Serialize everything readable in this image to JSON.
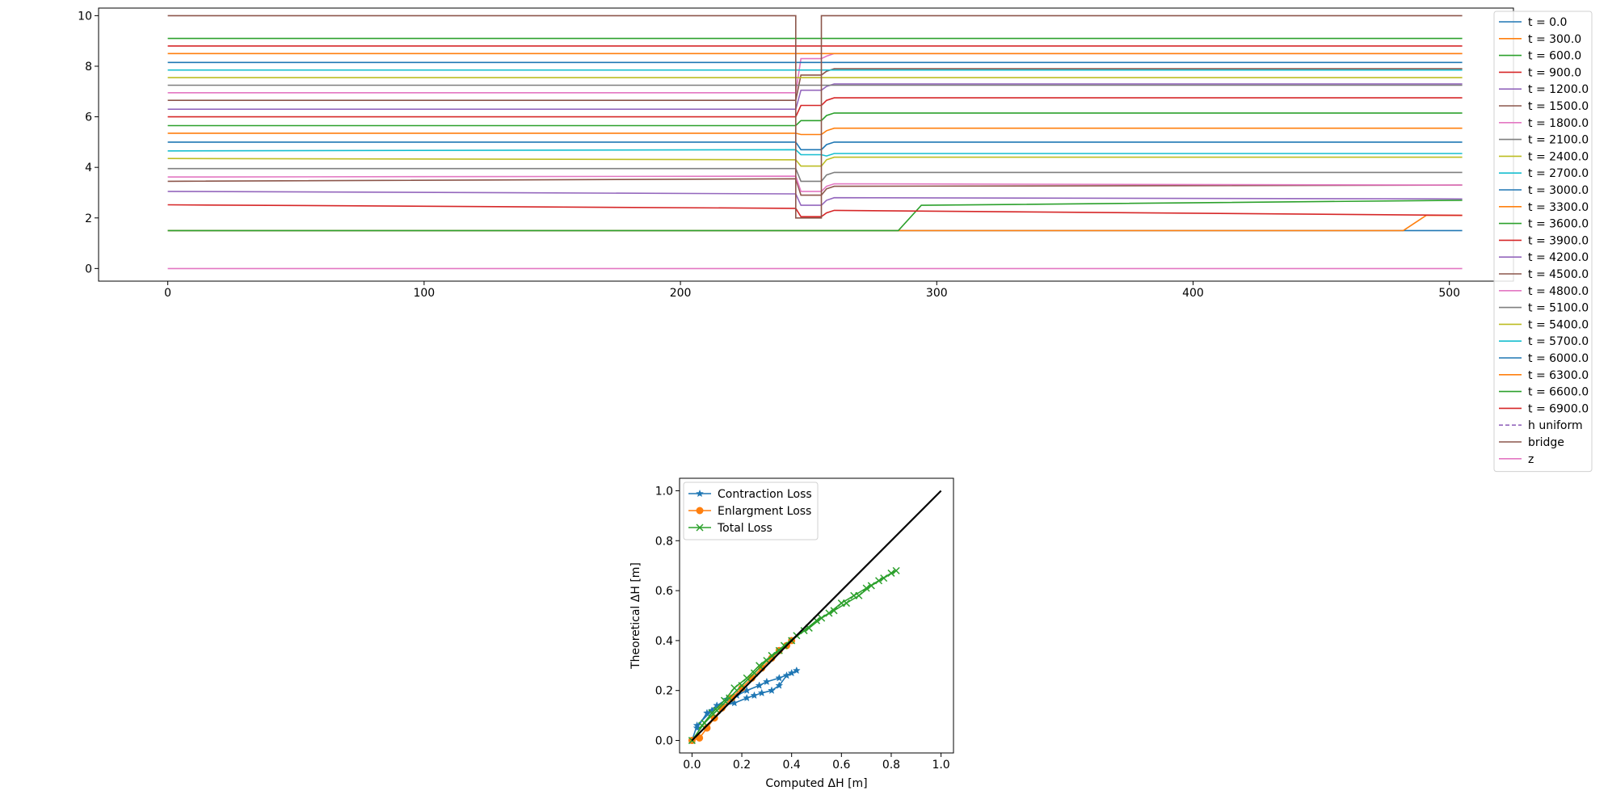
{
  "chart_data": [
    {
      "type": "line",
      "title": "",
      "xlabel": "",
      "ylabel": "",
      "xlim": [
        -27,
        525
      ],
      "ylim": [
        -0.5,
        10.3
      ],
      "xticks": [
        0,
        100,
        200,
        300,
        400,
        500
      ],
      "yticks": [
        0,
        2,
        4,
        6,
        8,
        10
      ],
      "grid": false,
      "legend_position": "upper right",
      "series": [
        {
          "name": "t = 0.0",
          "color": "#1f77b4",
          "profile": {
            "kind": "flat",
            "up": 1.5,
            "down": 1.5
          }
        },
        {
          "name": "t = 300.0",
          "color": "#ff7f0e",
          "profile": {
            "kind": "flat",
            "up": 1.5,
            "down": 1.5,
            "rise_x": 485,
            "rise_to": 2.1
          }
        },
        {
          "name": "t = 600.0",
          "color": "#2ca02c",
          "profile": {
            "kind": "flat",
            "up": 1.5,
            "down": 1.5,
            "rise_x": 288,
            "rise_to": 2.5,
            "rise_end": 2.7
          }
        },
        {
          "name": "t = 900.0",
          "color": "#d62728",
          "profile": {
            "kind": "bridge",
            "up0": 2.52,
            "up1": 2.38,
            "in": 2.05,
            "down0": 2.3,
            "down1": 2.1
          }
        },
        {
          "name": "t = 1200.0",
          "color": "#9467bd",
          "profile": {
            "kind": "bridge",
            "up0": 3.05,
            "up1": 2.95,
            "in": 2.5,
            "down0": 2.8,
            "down1": 2.75
          }
        },
        {
          "name": "t = 1500.0",
          "color": "#8c564b",
          "profile": {
            "kind": "bridge",
            "up0": 3.45,
            "up1": 3.55,
            "in": 2.9,
            "down0": 3.25,
            "down1": 3.3
          }
        },
        {
          "name": "t = 1800.0",
          "color": "#e377c2",
          "profile": {
            "kind": "bridge",
            "up0": 3.62,
            "up1": 3.65,
            "in": 3.05,
            "down0": 3.35,
            "down1": 3.3
          }
        },
        {
          "name": "t = 2100.0",
          "color": "#7f7f7f",
          "profile": {
            "kind": "bridge",
            "up0": 3.95,
            "up1": 3.95,
            "in": 3.45,
            "down0": 3.8,
            "down1": 3.8
          }
        },
        {
          "name": "t = 2400.0",
          "color": "#bcbd22",
          "profile": {
            "kind": "bridge",
            "up0": 4.35,
            "up1": 4.3,
            "in": 4.05,
            "down0": 4.4,
            "down1": 4.4
          }
        },
        {
          "name": "t = 2700.0",
          "color": "#17becf",
          "profile": {
            "kind": "bridge",
            "up0": 4.65,
            "up1": 4.7,
            "in": 4.5,
            "down0": 4.55,
            "down1": 4.55
          }
        },
        {
          "name": "t = 3000.0",
          "color": "#1f77b4",
          "profile": {
            "kind": "bridge",
            "up0": 5.0,
            "up1": 5.0,
            "in": 4.7,
            "down0": 5.0,
            "down1": 5.0
          }
        },
        {
          "name": "t = 3300.0",
          "color": "#ff7f0e",
          "profile": {
            "kind": "bridge",
            "up0": 5.35,
            "up1": 5.35,
            "in": 5.3,
            "down0": 5.55,
            "down1": 5.55
          }
        },
        {
          "name": "t = 3600.0",
          "color": "#2ca02c",
          "profile": {
            "kind": "bridge",
            "up0": 5.65,
            "up1": 5.65,
            "in": 5.85,
            "down0": 6.15,
            "down1": 6.15
          }
        },
        {
          "name": "t = 3900.0",
          "color": "#d62728",
          "profile": {
            "kind": "bridge",
            "up0": 6.0,
            "up1": 6.0,
            "in": 6.45,
            "down0": 6.75,
            "down1": 6.75
          }
        },
        {
          "name": "t = 4200.0",
          "color": "#9467bd",
          "profile": {
            "kind": "bridge",
            "up0": 6.3,
            "up1": 6.3,
            "in": 7.05,
            "down0": 7.3,
            "down1": 7.3
          }
        },
        {
          "name": "t = 4500.0",
          "color": "#8c564b",
          "profile": {
            "kind": "bridge",
            "up0": 6.65,
            "up1": 6.65,
            "in": 7.65,
            "down0": 7.9,
            "down1": 7.9
          }
        },
        {
          "name": "t = 4800.0",
          "color": "#e377c2",
          "profile": {
            "kind": "bridge",
            "up0": 6.95,
            "up1": 6.95,
            "in": 8.3,
            "down0": 8.5,
            "down1": 8.5
          }
        },
        {
          "name": "t = 5100.0",
          "color": "#7f7f7f",
          "profile": {
            "kind": "flat",
            "up": 7.25,
            "down": 7.25
          }
        },
        {
          "name": "t = 5400.0",
          "color": "#bcbd22",
          "profile": {
            "kind": "flat",
            "up": 7.55,
            "down": 7.55
          }
        },
        {
          "name": "t = 5700.0",
          "color": "#17becf",
          "profile": {
            "kind": "flat",
            "up": 7.85,
            "down": 7.85
          }
        },
        {
          "name": "t = 6000.0",
          "color": "#1f77b4",
          "profile": {
            "kind": "flat",
            "up": 8.15,
            "down": 8.15
          }
        },
        {
          "name": "t = 6300.0",
          "color": "#ff7f0e",
          "profile": {
            "kind": "flat",
            "up": 8.5,
            "down": 8.5
          }
        },
        {
          "name": "t = 6600.0",
          "color": "#2ca02c",
          "profile": {
            "kind": "flat",
            "up": 9.1,
            "down": 9.1
          }
        },
        {
          "name": "t = 6900.0",
          "color": "#d62728",
          "profile": {
            "kind": "flat",
            "up": 8.8,
            "down": 8.8
          }
        },
        {
          "name": "h uniform",
          "color": "#9467bd",
          "dashed": true,
          "profile": {
            "kind": "hidden"
          }
        },
        {
          "name": "bridge",
          "color": "#8c564b",
          "profile": {
            "kind": "deck",
            "top": 10.0,
            "soffit": 2.0,
            "x0": 245,
            "x1": 255
          }
        },
        {
          "name": "z",
          "color": "#e377c2",
          "profile": {
            "kind": "flat",
            "up": 0.0,
            "down": 0.0
          }
        }
      ]
    },
    {
      "type": "line",
      "title": "",
      "xlabel": "Computed ΔH [m]",
      "ylabel": "Theoretical ΔH [m]",
      "xlim": [
        -0.05,
        1.05
      ],
      "ylim": [
        -0.05,
        1.05
      ],
      "xticks": [
        "0.0",
        "0.2",
        "0.4",
        "0.6",
        "0.8",
        "1.0"
      ],
      "yticks": [
        "0.0",
        "0.2",
        "0.4",
        "0.6",
        "0.8",
        "1.0"
      ],
      "grid": false,
      "legend_position": "upper left",
      "series": [
        {
          "name": "Contraction Loss",
          "color": "#1f77b4",
          "marker": "star",
          "x": [
            0.0,
            0.02,
            0.08,
            0.12,
            0.17,
            0.22,
            0.25,
            0.28,
            0.32,
            0.35,
            0.38,
            0.42,
            0.4,
            0.35,
            0.3,
            0.27,
            0.22,
            0.18,
            0.14,
            0.1,
            0.06,
            0.02
          ],
          "y": [
            0.0,
            0.06,
            0.12,
            0.14,
            0.15,
            0.17,
            0.18,
            0.19,
            0.2,
            0.22,
            0.26,
            0.28,
            0.27,
            0.25,
            0.235,
            0.22,
            0.2,
            0.18,
            0.165,
            0.14,
            0.11,
            0.05
          ]
        },
        {
          "name": "Enlargment Loss",
          "color": "#ff7f0e",
          "marker": "circle",
          "x": [
            0.0,
            0.03,
            0.06,
            0.09,
            0.12,
            0.16,
            0.2,
            0.24,
            0.28,
            0.32,
            0.35,
            0.38,
            0.4
          ],
          "y": [
            0.0,
            0.01,
            0.05,
            0.09,
            0.13,
            0.17,
            0.21,
            0.25,
            0.29,
            0.33,
            0.36,
            0.38,
            0.4
          ]
        },
        {
          "name": "Total Loss",
          "color": "#2ca02c",
          "marker": "x",
          "x": [
            0.0,
            0.05,
            0.1,
            0.15,
            0.2,
            0.25,
            0.3,
            0.35,
            0.4,
            0.45,
            0.5,
            0.55,
            0.6,
            0.65,
            0.7,
            0.75,
            0.8,
            0.82,
            0.77,
            0.72,
            0.67,
            0.62,
            0.57,
            0.52,
            0.47,
            0.42,
            0.37,
            0.32,
            0.27,
            0.22,
            0.17,
            0.13,
            0.08,
            0.04
          ],
          "y": [
            0.0,
            0.07,
            0.12,
            0.17,
            0.22,
            0.27,
            0.32,
            0.36,
            0.4,
            0.44,
            0.48,
            0.51,
            0.55,
            0.58,
            0.61,
            0.64,
            0.67,
            0.68,
            0.65,
            0.62,
            0.58,
            0.55,
            0.52,
            0.49,
            0.45,
            0.42,
            0.38,
            0.34,
            0.3,
            0.25,
            0.21,
            0.16,
            0.11,
            0.06
          ]
        },
        {
          "name": "",
          "color": "#000000",
          "marker": "none",
          "x": [
            0.0,
            1.0
          ],
          "y": [
            0.0,
            1.0
          ]
        }
      ]
    }
  ]
}
